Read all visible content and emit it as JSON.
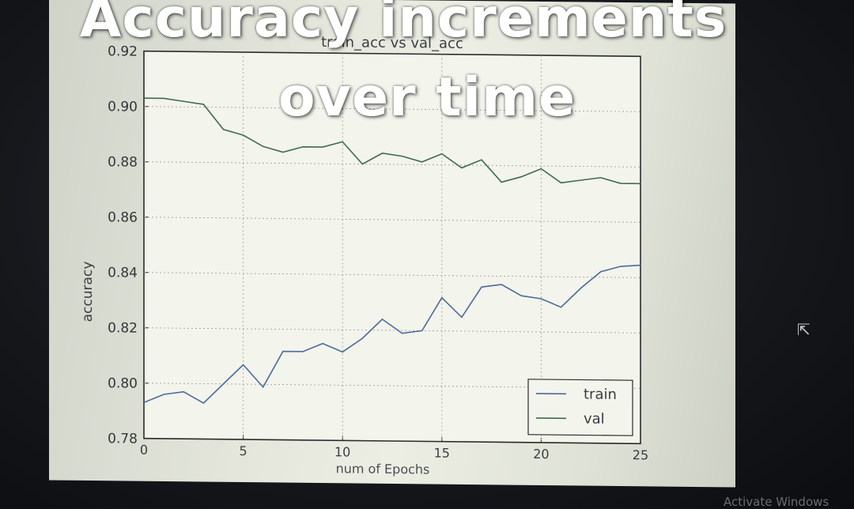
{
  "overlay": {
    "caption_line1": "Accuracy increments",
    "caption_line2": "over time"
  },
  "watermark": "Activate Windows",
  "cursor_icon": "mouse-pointer-icon",
  "chart_data": {
    "type": "line",
    "title": "train_acc vs val_acc",
    "xlabel": "num of Epochs",
    "ylabel": "accuracy",
    "xlim": [
      0,
      25
    ],
    "ylim": [
      0.78,
      0.92
    ],
    "xticks": [
      0,
      5,
      10,
      15,
      20,
      25
    ],
    "yticks": [
      0.78,
      0.8,
      0.82,
      0.84,
      0.86,
      0.88,
      0.9,
      0.92
    ],
    "ytick_labels": [
      "0.78",
      "0.80",
      "0.82",
      "0.84",
      "0.86",
      "0.88",
      "0.90",
      "0.92"
    ],
    "grid": true,
    "legend_position": "lower right",
    "x": [
      0,
      1,
      2,
      3,
      4,
      5,
      6,
      7,
      8,
      9,
      10,
      11,
      12,
      13,
      14,
      15,
      16,
      17,
      18,
      19,
      20,
      21,
      22,
      23,
      24,
      25
    ],
    "series": [
      {
        "name": "train",
        "color": "#4c6a9e",
        "values": [
          0.793,
          0.796,
          0.797,
          0.793,
          0.8,
          0.807,
          0.799,
          0.812,
          0.812,
          0.815,
          0.812,
          0.817,
          0.824,
          0.819,
          0.82,
          0.832,
          0.825,
          0.836,
          0.837,
          0.833,
          0.832,
          0.829,
          0.836,
          0.842,
          0.844,
          0.8445
        ]
      },
      {
        "name": "val",
        "color": "#3f6b4c",
        "values": [
          0.903,
          0.903,
          0.902,
          0.901,
          0.892,
          0.89,
          0.886,
          0.884,
          0.886,
          0.886,
          0.888,
          0.88,
          0.884,
          0.883,
          0.881,
          0.884,
          0.879,
          0.882,
          0.874,
          0.876,
          0.879,
          0.874,
          0.875,
          0.876,
          0.874,
          0.874
        ]
      }
    ]
  }
}
